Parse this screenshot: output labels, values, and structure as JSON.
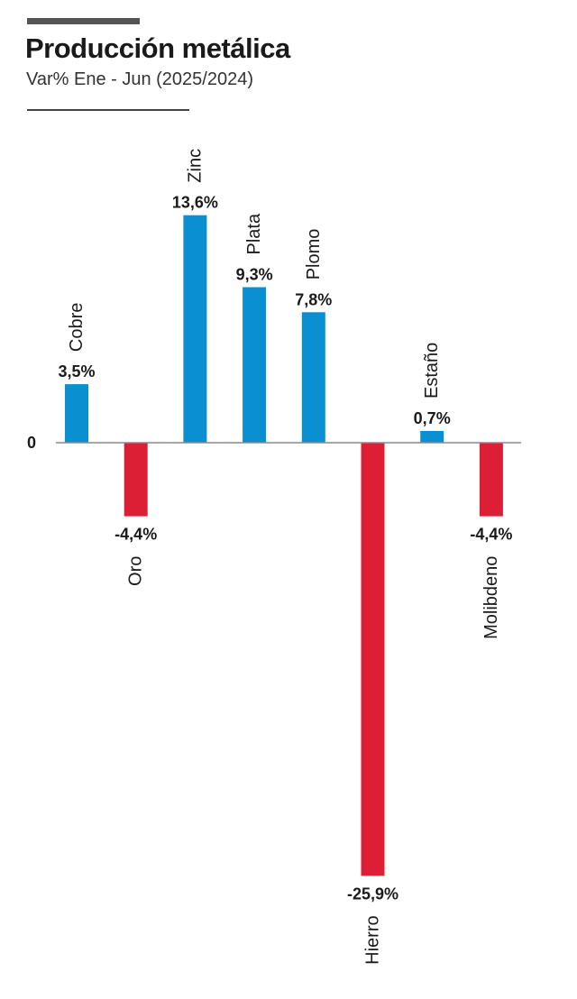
{
  "chart_data": {
    "type": "bar",
    "title": "Producción metálica",
    "subtitle": "Var% Ene - Jun (2025/2024)",
    "categories": [
      "Cobre",
      "Oro",
      "Zinc",
      "Plata",
      "Plomo",
      "Hierro",
      "Estaño",
      "Molibdeno"
    ],
    "values": [
      3.5,
      -4.4,
      13.6,
      9.3,
      7.8,
      -25.9,
      0.7,
      -4.4
    ],
    "value_labels": [
      "3,5%",
      "-4,4%",
      "13,6%",
      "9,3%",
      "7,8%",
      "-25,9%",
      "0,7%",
      "-4,4%"
    ],
    "zero_label": "0",
    "ylim": [
      -25.9,
      13.6
    ],
    "colors": {
      "positive": "#0a8fd1",
      "negative": "#dc1f35",
      "axis": "#8a8a8a"
    }
  }
}
